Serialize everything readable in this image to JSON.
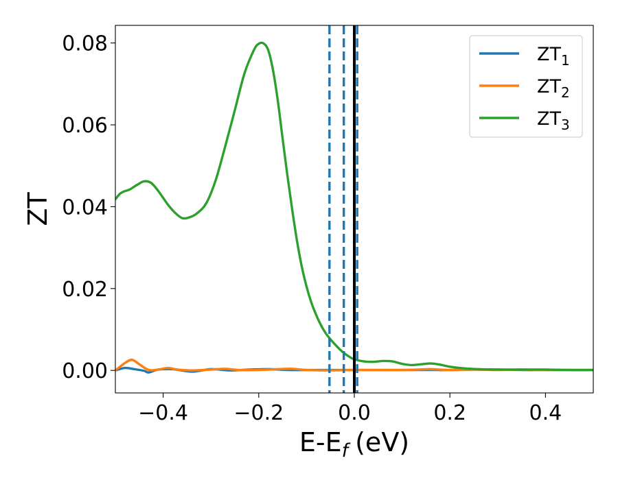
{
  "chart_data": {
    "type": "line",
    "xlabel": "E-E",
    "xlabel_sub": "f",
    "xlabel_unit": "(eV)",
    "ylabel": "ZT",
    "xlim": [
      -0.5,
      0.5
    ],
    "ylim": [
      -0.0055,
      0.0843
    ],
    "grid": false,
    "legend_position": "top-right",
    "x_ticks": [
      {
        "value": -0.4,
        "label": "−0.4"
      },
      {
        "value": -0.2,
        "label": "−0.2"
      },
      {
        "value": 0.0,
        "label": "0.0"
      },
      {
        "value": 0.2,
        "label": "0.2"
      },
      {
        "value": 0.4,
        "label": "0.4"
      }
    ],
    "y_ticks": [
      {
        "value": 0.0,
        "label": "0.00"
      },
      {
        "value": 0.02,
        "label": "0.02"
      },
      {
        "value": 0.04,
        "label": "0.04"
      },
      {
        "value": 0.06,
        "label": "0.06"
      },
      {
        "value": 0.08,
        "label": "0.08"
      }
    ],
    "series": [
      {
        "name": "ZT",
        "sub": "1",
        "color": "#1f77b4",
        "x": [
          -0.5,
          -0.48,
          -0.46,
          -0.44,
          -0.43,
          -0.41,
          -0.38,
          -0.34,
          -0.3,
          -0.26,
          -0.22,
          -0.18,
          -0.14,
          -0.1,
          -0.05,
          0.0,
          0.05,
          0.1,
          0.15,
          0.2,
          0.25,
          0.3,
          0.35,
          0.4,
          0.45,
          0.5
        ],
        "y": [
          0.0,
          0.0006,
          0.0003,
          -0.0001,
          -0.0005,
          0.0002,
          0.0003,
          -0.0003,
          0.0003,
          0.0,
          0.0002,
          0.0003,
          0.0001,
          0.0001,
          0.0001,
          0.0001,
          0.0001,
          0.0001,
          0.0001,
          0.0001,
          0.0002,
          0.0002,
          0.0001,
          0.0001,
          0.0001,
          0.0001
        ]
      },
      {
        "name": "ZT",
        "sub": "2",
        "color": "#ff7f0e",
        "x": [
          -0.5,
          -0.48,
          -0.465,
          -0.45,
          -0.43,
          -0.41,
          -0.39,
          -0.37,
          -0.34,
          -0.3,
          -0.27,
          -0.24,
          -0.2,
          -0.16,
          -0.13,
          -0.1,
          -0.05,
          0.0,
          0.05,
          0.1,
          0.13,
          0.16,
          0.2,
          0.25,
          0.3,
          0.35,
          0.4,
          0.45,
          0.5
        ],
        "y": [
          0.0,
          0.0018,
          0.0026,
          0.0015,
          0.0001,
          0.0002,
          0.0006,
          0.0002,
          0.0,
          0.0002,
          0.0004,
          0.0001,
          0.0001,
          0.0003,
          0.0004,
          0.0001,
          0.0,
          0.0001,
          0.0001,
          0.0001,
          0.0002,
          0.0003,
          0.0001,
          0.0002,
          0.0001,
          0.0002,
          0.0001,
          0.0001,
          0.0001
        ]
      },
      {
        "name": "ZT",
        "sub": "3",
        "color": "#2ca02c",
        "x": [
          -0.5,
          -0.49,
          -0.48,
          -0.47,
          -0.455,
          -0.44,
          -0.425,
          -0.41,
          -0.39,
          -0.375,
          -0.36,
          -0.345,
          -0.33,
          -0.31,
          -0.29,
          -0.27,
          -0.25,
          -0.23,
          -0.21,
          -0.2,
          -0.19,
          -0.18,
          -0.17,
          -0.16,
          -0.15,
          -0.14,
          -0.13,
          -0.12,
          -0.11,
          -0.1,
          -0.09,
          -0.08,
          -0.07,
          -0.06,
          -0.05,
          -0.04,
          -0.03,
          -0.02,
          -0.01,
          0.0,
          0.02,
          0.04,
          0.06,
          0.08,
          0.1,
          0.12,
          0.14,
          0.16,
          0.18,
          0.2,
          0.23,
          0.26,
          0.3,
          0.35,
          0.4,
          0.45,
          0.5
        ],
        "y": [
          0.0418,
          0.0432,
          0.0438,
          0.0442,
          0.0453,
          0.0462,
          0.0458,
          0.0438,
          0.0405,
          0.0385,
          0.0372,
          0.0374,
          0.0383,
          0.0408,
          0.0465,
          0.0548,
          0.0636,
          0.0725,
          0.0783,
          0.0798,
          0.0799,
          0.0782,
          0.0733,
          0.0658,
          0.0566,
          0.0476,
          0.0393,
          0.0317,
          0.0254,
          0.0205,
          0.0166,
          0.0136,
          0.0111,
          0.0091,
          0.0076,
          0.0063,
          0.0051,
          0.0041,
          0.0033,
          0.0027,
          0.0022,
          0.0021,
          0.0023,
          0.0022,
          0.0016,
          0.0013,
          0.0015,
          0.0017,
          0.0014,
          0.0009,
          0.0005,
          0.0003,
          0.0002,
          0.0002,
          0.0002,
          0.0001,
          0.0001
        ]
      }
    ],
    "vlines": [
      {
        "x": -0.052,
        "color": "#1f77b4",
        "style": "dashed"
      },
      {
        "x": -0.022,
        "color": "#1f77b4",
        "style": "dashed"
      },
      {
        "x": 0.006,
        "color": "#1f77b4",
        "style": "dashed"
      },
      {
        "x": 0.0,
        "color": "#000000",
        "style": "solid"
      }
    ]
  }
}
